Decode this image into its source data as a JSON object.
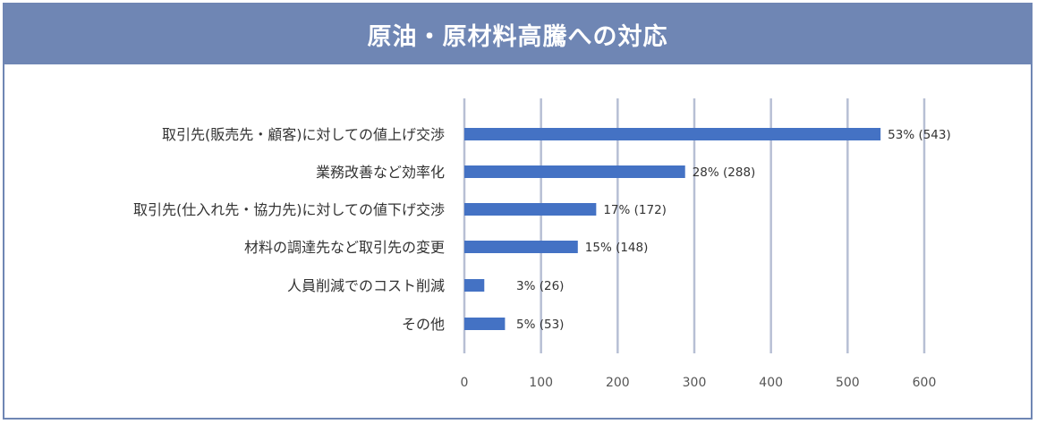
{
  "title": "原油・原材料高騰への対応",
  "colors": {
    "header": "#6f86b4",
    "bar": "#4472c4",
    "grid": "#b7bfd4"
  },
  "chart_data": {
    "type": "bar",
    "orientation": "horizontal",
    "categories": [
      "取引先(販売先・顧客)に対しての値上げ交渉",
      "業務改善など効率化",
      "取引先(仕入れ先・協力先)に対しての値下げ交渉",
      "材料の調達先など取引先の変更",
      "人員削減でのコスト削減",
      "その他"
    ],
    "values": [
      543,
      288,
      172,
      148,
      26,
      53
    ],
    "data_labels": [
      "53% (543)",
      "28% (288)",
      "17% (172)",
      "15% (148)",
      "3% (26)",
      "5% (53)"
    ],
    "xlim": [
      0,
      600
    ],
    "xticks": [
      0,
      100,
      200,
      300,
      400,
      500,
      600
    ],
    "grid": true,
    "legend": "none"
  }
}
